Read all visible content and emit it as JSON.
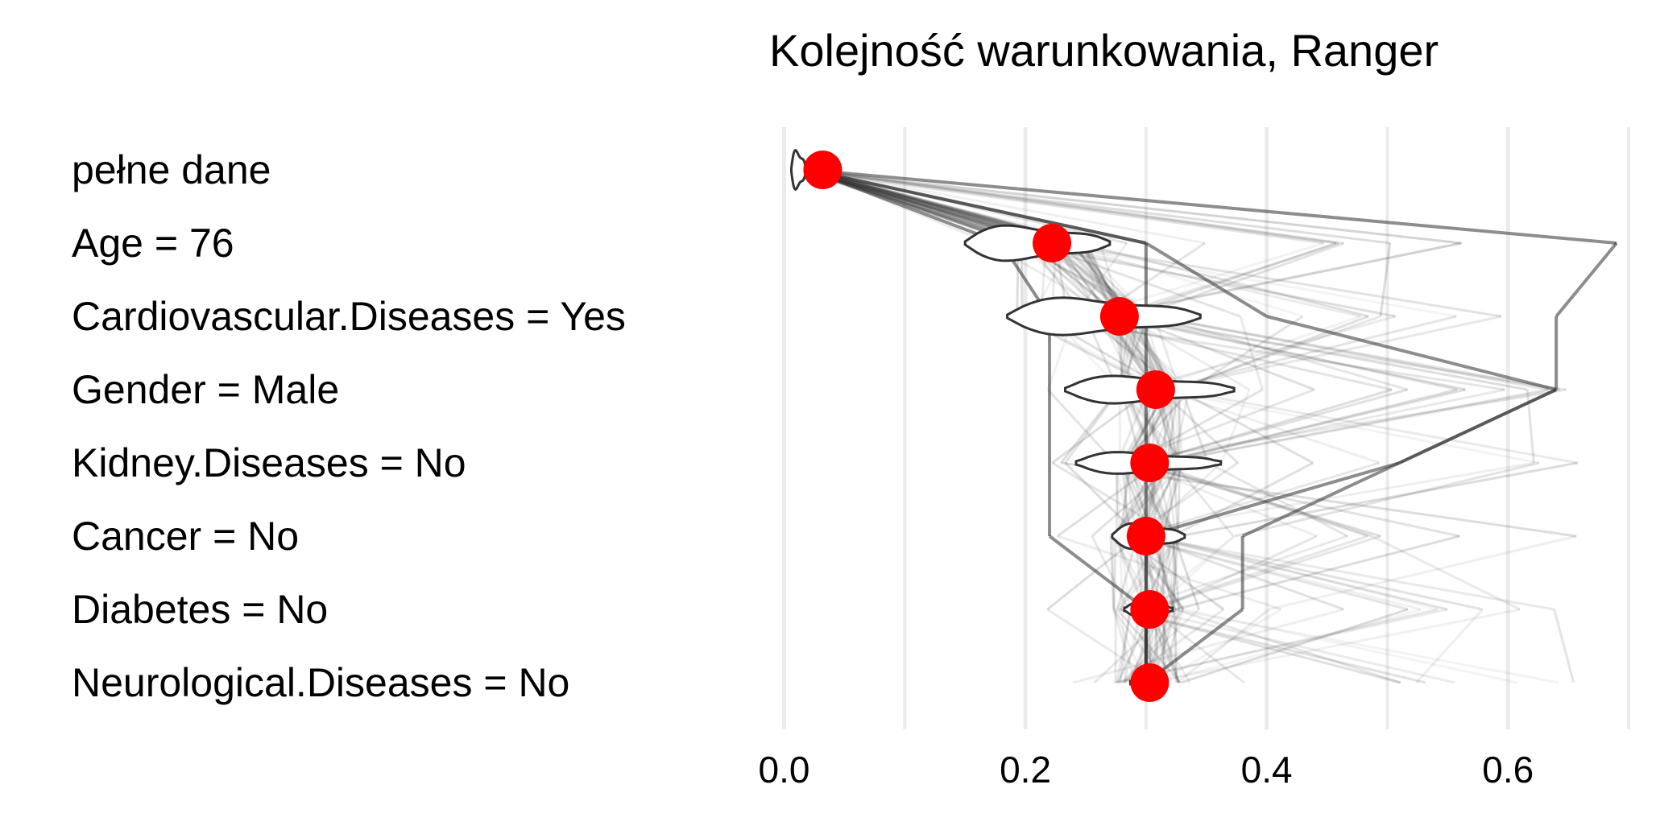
{
  "chart_data": {
    "type": "break-down-violin",
    "title": "Kolejność warunkowania, Ranger",
    "xlabel": "",
    "ylabel": "",
    "xlim": [
      -0.005,
      0.7
    ],
    "x_ticks": [
      0.0,
      0.2,
      0.4,
      0.6
    ],
    "x_tick_labels": [
      "0.0",
      "0.2",
      "0.4",
      "0.6"
    ],
    "grid": "vertical-major-and-minor",
    "rows": [
      {
        "label": "pełne dane",
        "mean_prediction": 0.032
      },
      {
        "label": "Age = 76",
        "mean_prediction": 0.222
      },
      {
        "label": "Cardiovascular.Diseases = Yes",
        "mean_prediction": 0.278
      },
      {
        "label": "Gender = Male",
        "mean_prediction": 0.308
      },
      {
        "label": "Kidney.Diseases = No",
        "mean_prediction": 0.303
      },
      {
        "label": "Cancer = No",
        "mean_prediction": 0.3
      },
      {
        "label": "Diabetes = No",
        "mean_prediction": 0.303
      },
      {
        "label": "Neurological.Diseases = No",
        "mean_prediction": 0.303
      }
    ],
    "violin_colors": {
      "outline": "#333333",
      "fill": "#ffffff"
    },
    "point_color": "#ff0000",
    "path_color": "#2f2f2f"
  }
}
